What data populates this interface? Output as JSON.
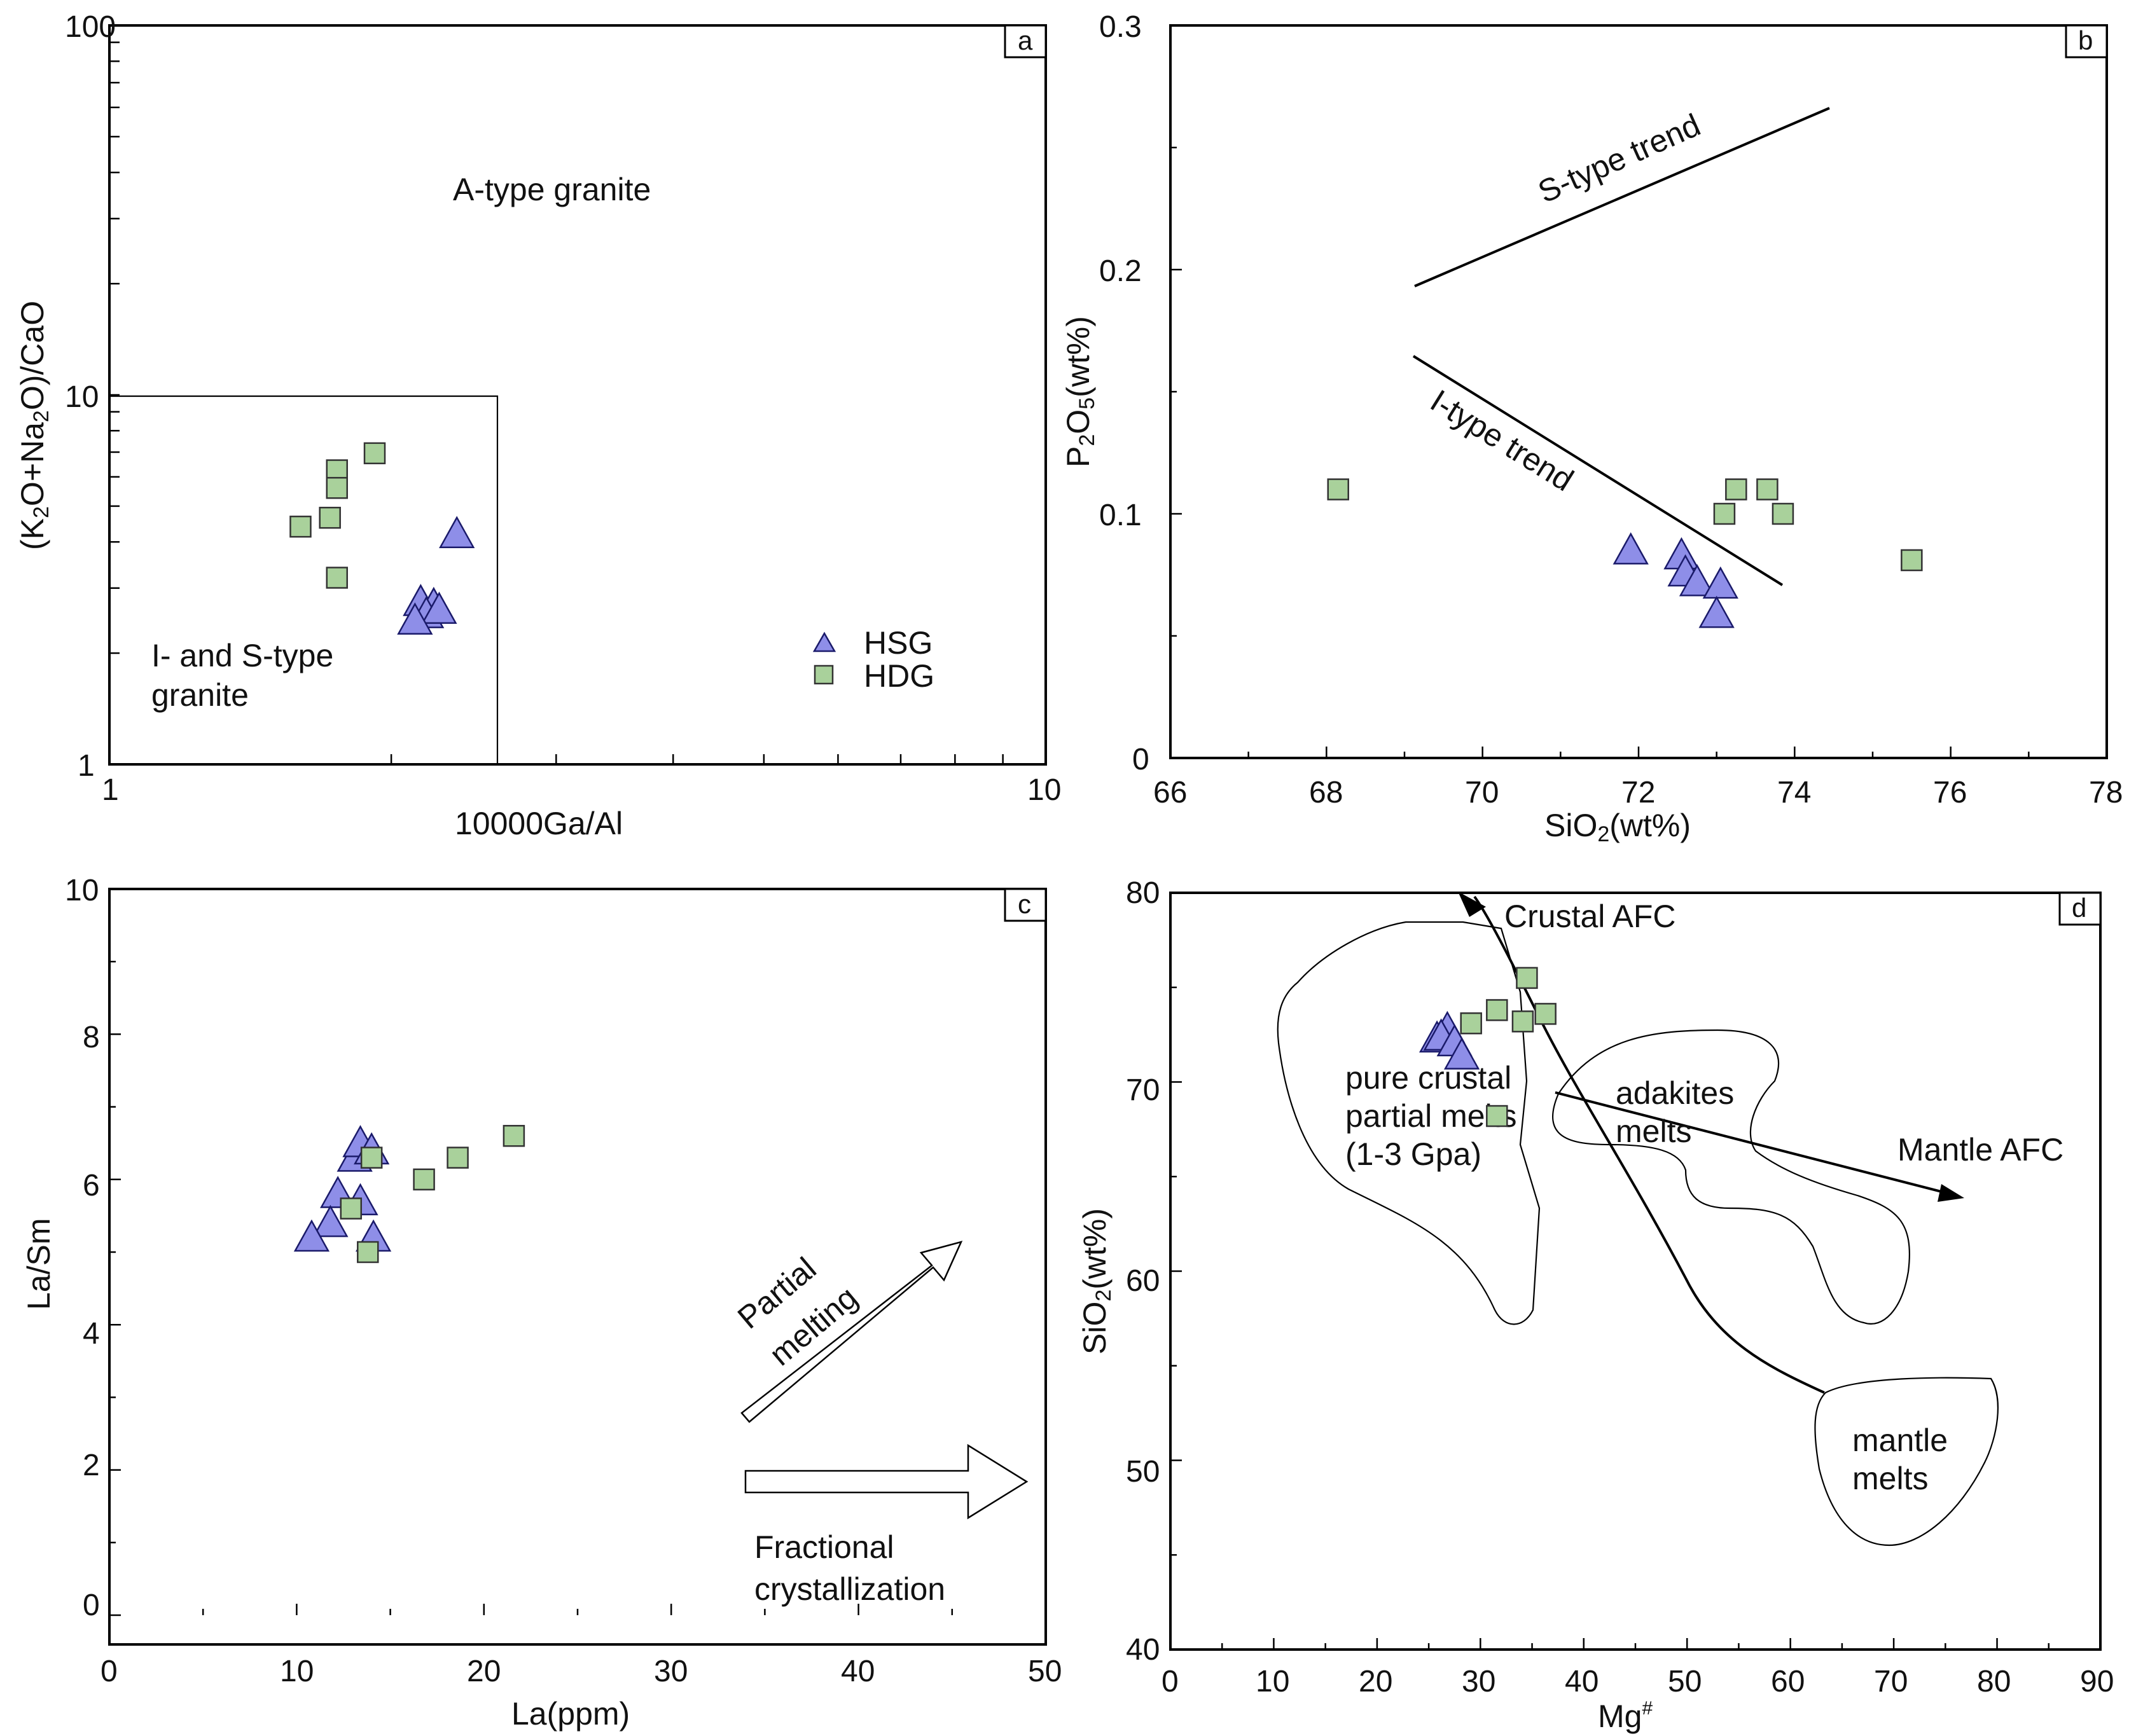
{
  "colors": {
    "hsg": "#8e8ee8",
    "hdg": "#a9d19b"
  },
  "legend": {
    "hsg": "HSG",
    "hdg": "HDG"
  },
  "chart_data": [
    {
      "type": "scatter",
      "panel": "a",
      "xlabel": "10000Ga/Al",
      "ylabel": "(K₂O+Na₂O)/CaO",
      "xscale": "log",
      "yscale": "log",
      "xlim": [
        1,
        10
      ],
      "ylim": [
        1,
        100
      ],
      "xticks": [
        "1",
        "10"
      ],
      "yticks": [
        "1",
        "10",
        "100"
      ],
      "regions": {
        "a_type": "A-type granite",
        "is_type_line1": "I- and S-type",
        "is_type_line2": "granite"
      },
      "series": [
        {
          "name": "HSG",
          "x": [
            2.15,
            2.22,
            2.18,
            2.25,
            2.12,
            2.35
          ],
          "y": [
            2.75,
            2.7,
            2.55,
            2.62,
            2.45,
            4.2
          ]
        },
        {
          "name": "HDG",
          "x": [
            1.6,
            1.72,
            1.75,
            1.75,
            1.75,
            1.92
          ],
          "y": [
            4.4,
            4.65,
            6.25,
            5.6,
            3.2,
            6.95
          ]
        }
      ]
    },
    {
      "type": "scatter",
      "panel": "b",
      "xlabel": "SiO₂(wt%)",
      "ylabel": "P₂O₅(wt%)",
      "xlim": [
        66,
        78
      ],
      "ylim": [
        0,
        0.3
      ],
      "xticks": [
        "66",
        "68",
        "70",
        "72",
        "74",
        "76",
        "78"
      ],
      "yticks": [
        "0",
        "0.1",
        "0.2",
        "0.3"
      ],
      "annotations": {
        "s_trend": "S-type trend",
        "i_trend": "I-type trend"
      },
      "series": [
        {
          "name": "HSG",
          "x": [
            71.9,
            72.55,
            72.6,
            72.75,
            73.05,
            73.0
          ],
          "y": [
            0.085,
            0.083,
            0.076,
            0.072,
            0.071,
            0.059
          ]
        },
        {
          "name": "HDG",
          "x": [
            68.15,
            73.1,
            73.25,
            73.65,
            73.85,
            75.5
          ],
          "y": [
            0.11,
            0.1,
            0.11,
            0.11,
            0.1,
            0.081
          ]
        }
      ]
    },
    {
      "type": "scatter",
      "panel": "c",
      "xlabel": "La(ppm)",
      "ylabel": "La/Sm",
      "xlim": [
        0,
        50
      ],
      "ylim": [
        0,
        10
      ],
      "xticks": [
        "0",
        "10",
        "20",
        "30",
        "40",
        "50"
      ],
      "yticks": [
        "0",
        "2",
        "4",
        "6",
        "8",
        "10"
      ],
      "annotations": {
        "pm_line1": "Partial",
        "pm_line2": "melting",
        "fc_line1": "Fractional",
        "fc_line2": "crystallization"
      },
      "series": [
        {
          "name": "HSG",
          "x": [
            13.1,
            13.4,
            14.0,
            12.2,
            13.4,
            11.8,
            10.8,
            14.1
          ],
          "y": [
            6.3,
            6.5,
            6.4,
            5.8,
            5.7,
            5.4,
            5.2,
            5.2
          ]
        },
        {
          "name": "HDG",
          "x": [
            14.0,
            16.8,
            18.6,
            21.6,
            12.9,
            13.8
          ],
          "y": [
            6.3,
            6.0,
            6.3,
            6.6,
            5.6,
            5.0
          ]
        }
      ]
    },
    {
      "type": "scatter",
      "panel": "d",
      "xlabel": "Mg#",
      "ylabel": "SiO₂(wt%)",
      "xlim": [
        0,
        90
      ],
      "ylim": [
        40,
        80
      ],
      "xticks": [
        "0",
        "10",
        "20",
        "30",
        "40",
        "50",
        "60",
        "70",
        "80",
        "90"
      ],
      "yticks": [
        "40",
        "50",
        "60",
        "70",
        "80"
      ],
      "annotations": {
        "crustal_afc": "Crustal AFC",
        "mantle_afc": "Mantle AFC",
        "pure_line1": "pure crustal",
        "pure_line2": "partial melts",
        "pure_line3": "(1-3 Gpa)",
        "adakite_line1": "adakites",
        "adakite_line2": "melts",
        "mantle_line1": "mantle",
        "mantle_line2": "melts"
      },
      "series": [
        {
          "name": "HSG",
          "x": [
            25.8,
            26.8,
            26.2,
            27.5,
            28.2
          ],
          "y": [
            72.3,
            72.8,
            72.4,
            72.1,
            71.4
          ]
        },
        {
          "name": "HDG",
          "x": [
            29.1,
            31.6,
            34.1,
            34.5,
            36.3,
            31.6
          ],
          "y": [
            73.1,
            73.8,
            73.2,
            75.5,
            73.6,
            68.2
          ]
        }
      ]
    }
  ]
}
